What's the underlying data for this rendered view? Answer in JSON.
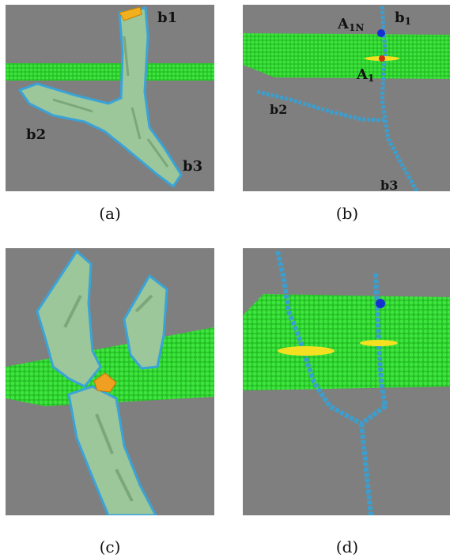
{
  "panels": [
    {
      "id": "a",
      "caption": "(a)",
      "labels": {
        "b1": "b1",
        "b2": "b2",
        "b3": "b3"
      }
    },
    {
      "id": "b",
      "caption": "(b)",
      "labels": {
        "a1n": "A",
        "a1n_sub": "1N",
        "b1": "b",
        "b1_sub": "1",
        "a1": "A",
        "a1_sub": "1",
        "b2": "b2",
        "b3": "b3"
      }
    },
    {
      "id": "c",
      "caption": "(c)"
    },
    {
      "id": "d",
      "caption": "(d)"
    }
  ],
  "colors": {
    "background": "#7f7f7f",
    "plane": "#2bd42b",
    "surface": "#9cc79a",
    "outline": "#3aa3d8",
    "highlight": "#f0b020",
    "marker": "#1530d0",
    "tube": "#3a9fd0"
  }
}
